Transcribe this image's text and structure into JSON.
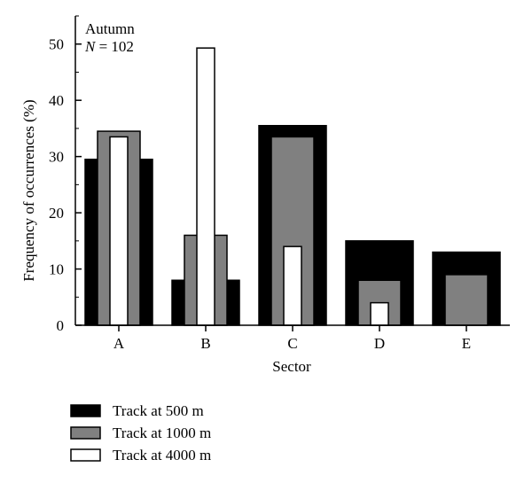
{
  "chart_data": {
    "type": "bar",
    "title_lines": [
      "Autumn",
      "= 102"
    ],
    "n_symbol": "N",
    "xlabel": "Sector",
    "ylabel": "Frequency of occurrences (%)",
    "categories": [
      "A",
      "B",
      "C",
      "D",
      "E"
    ],
    "ylim": [
      0,
      55
    ],
    "yticks": [
      0,
      10,
      20,
      30,
      40,
      50
    ],
    "grid": false,
    "legend_position": "bottom-left",
    "series": [
      {
        "name": "Track at 500 m",
        "color": "#000000",
        "values": [
          29.5,
          8,
          35.5,
          15,
          13
        ]
      },
      {
        "name": "Track at 1000 m",
        "color": "#808080",
        "values": [
          34.5,
          16,
          33.5,
          8,
          9
        ]
      },
      {
        "name": "Track at 4000 m",
        "color": "#ffffff",
        "values": [
          33.5,
          49.3,
          14,
          4,
          0
        ]
      }
    ]
  }
}
